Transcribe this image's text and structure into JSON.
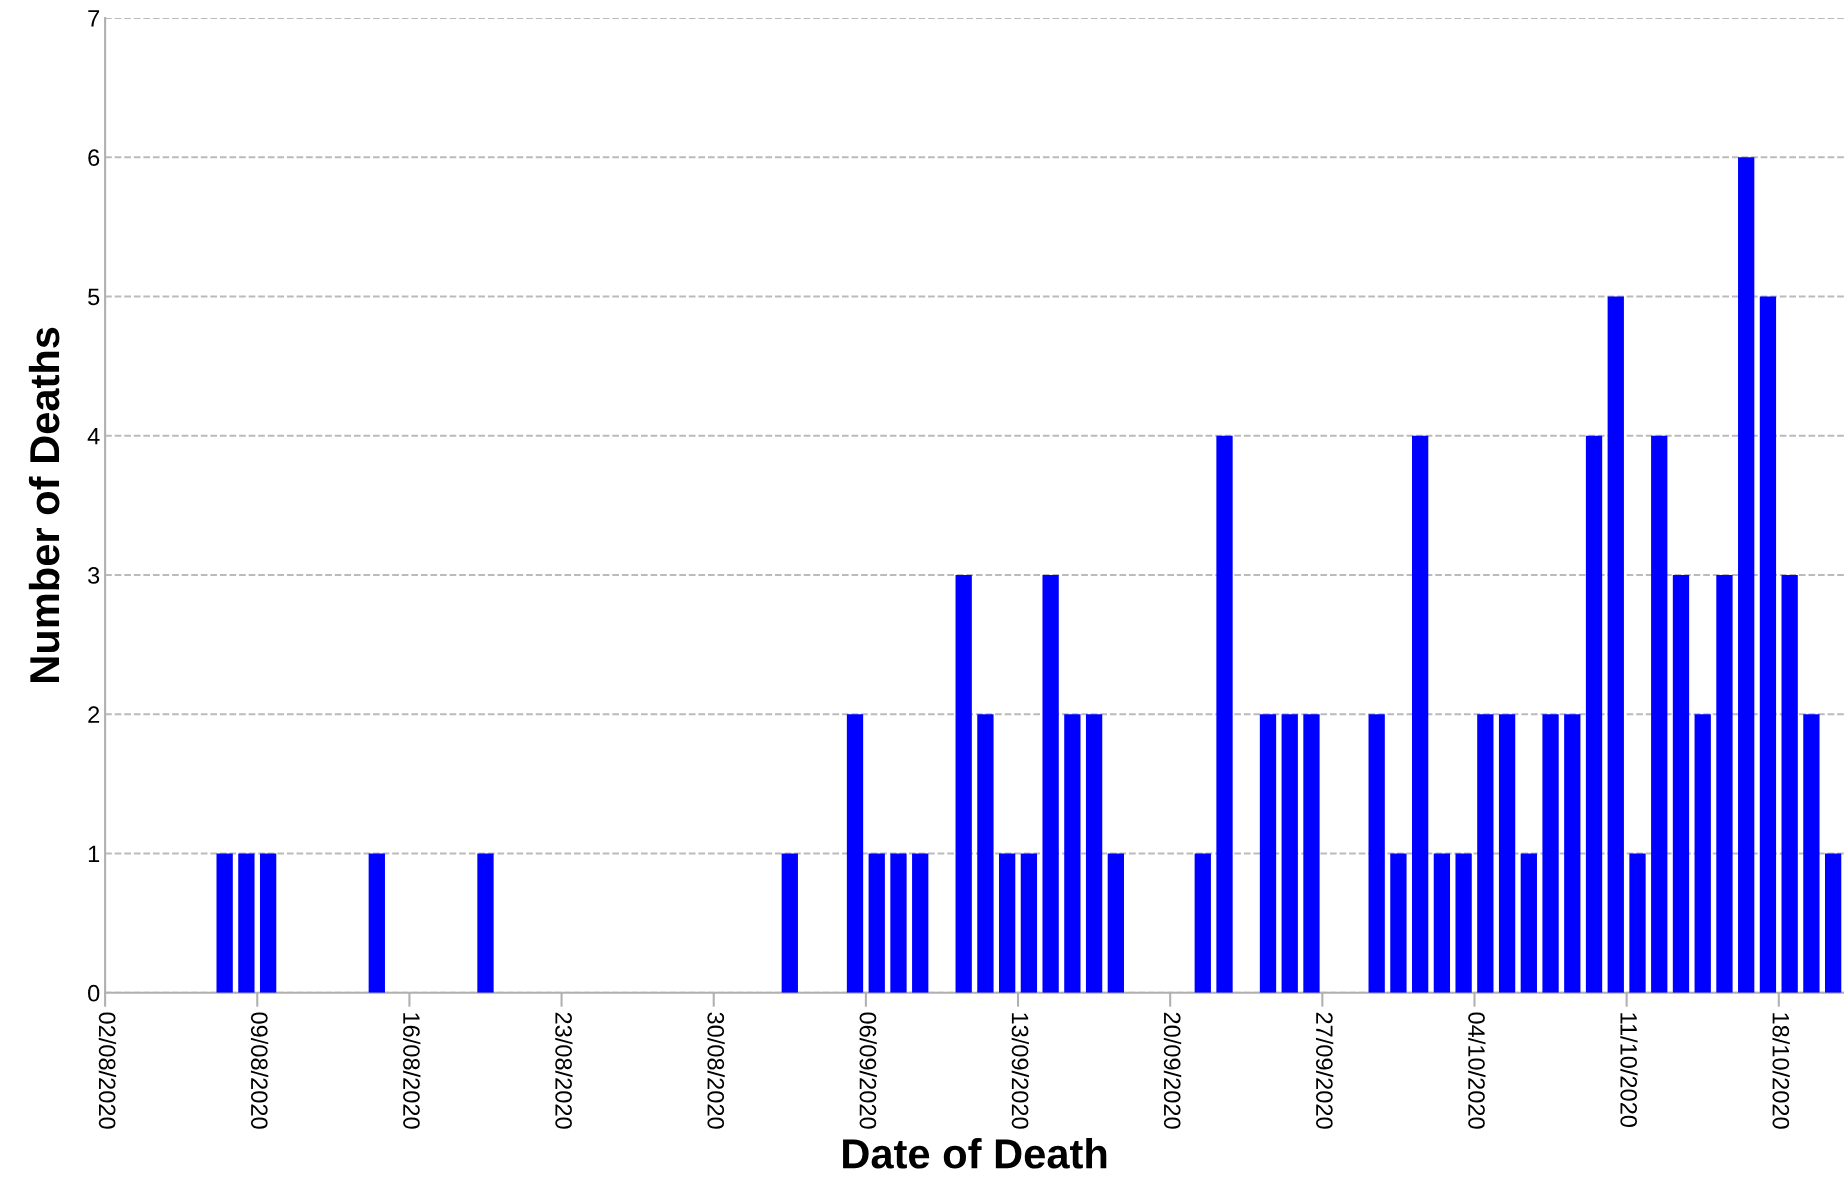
{
  "chart_data": {
    "type": "bar",
    "xlabel": "Date of Death",
    "ylabel": "Number of Deaths",
    "x": [
      "2020-08-07T12:00",
      "2020-08-08T12:00",
      "2020-08-09T12:00",
      "2020-08-14T12:00",
      "2020-08-19T12:00",
      "2020-09-02T12:00",
      "2020-09-05T12:00",
      "2020-09-06T12:00",
      "2020-09-07T12:00",
      "2020-09-08T12:00",
      "2020-09-10T12:00",
      "2020-09-11T12:00",
      "2020-09-12T12:00",
      "2020-09-13T12:00",
      "2020-09-14T12:00",
      "2020-09-15T12:00",
      "2020-09-16T12:00",
      "2020-09-17T12:00",
      "2020-09-21T12:00",
      "2020-09-22T12:00",
      "2020-09-24T12:00",
      "2020-09-25T12:00",
      "2020-09-26T12:00",
      "2020-09-29T12:00",
      "2020-09-30T12:00",
      "2020-10-01T12:00",
      "2020-10-02T12:00",
      "2020-10-03T12:00",
      "2020-10-04T12:00",
      "2020-10-05T12:00",
      "2020-10-06T12:00",
      "2020-10-07T12:00",
      "2020-10-08T12:00",
      "2020-10-09T12:00",
      "2020-10-10T12:00",
      "2020-10-11T12:00",
      "2020-10-12T12:00",
      "2020-10-13T12:00",
      "2020-10-14T12:00",
      "2020-10-15T12:00",
      "2020-10-16T12:00",
      "2020-10-17T12:00",
      "2020-10-18T12:00",
      "2020-10-19T12:00",
      "2020-10-20T12:00"
    ],
    "values": [
      1,
      1,
      1,
      1,
      1,
      1,
      2,
      1,
      1,
      1,
      3,
      2,
      1,
      1,
      3,
      2,
      2,
      1,
      1,
      4,
      2,
      2,
      2,
      2,
      1,
      4,
      1,
      1,
      2,
      2,
      1,
      2,
      2,
      4,
      5,
      1,
      4,
      3,
      2,
      3,
      6,
      5,
      3,
      2,
      1
    ],
    "color": "#0000ff",
    "xlim": [
      "2020-08-02",
      "2020-10-21"
    ],
    "xticks": [
      {
        "value": "2020-08-02",
        "label": "02/08/2020"
      },
      {
        "value": "2020-08-09",
        "label": "09/08/2020"
      },
      {
        "value": "2020-08-16",
        "label": "16/08/2020"
      },
      {
        "value": "2020-08-23",
        "label": "23/08/2020"
      },
      {
        "value": "2020-08-30",
        "label": "30/08/2020"
      },
      {
        "value": "2020-09-06",
        "label": "06/09/2020"
      },
      {
        "value": "2020-09-13",
        "label": "13/09/2020"
      },
      {
        "value": "2020-09-20",
        "label": "20/09/2020"
      },
      {
        "value": "2020-09-27",
        "label": "27/09/2020"
      },
      {
        "value": "2020-10-04",
        "label": "04/10/2020"
      },
      {
        "value": "2020-10-11",
        "label": "11/10/2020"
      },
      {
        "value": "2020-10-18",
        "label": "18/10/2020"
      }
    ],
    "ylim": [
      0,
      7
    ],
    "yticks": [
      0,
      1,
      2,
      3,
      4,
      5,
      6,
      7
    ],
    "grid": "y"
  }
}
